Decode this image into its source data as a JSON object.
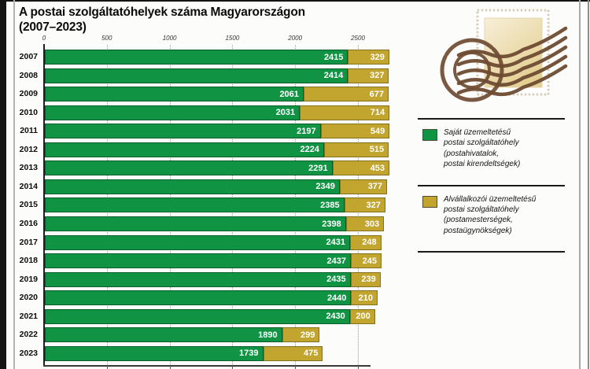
{
  "title": {
    "line1": "A postai szolgáltatóhelyek száma Magyarországon",
    "line2": "(2007–2023)"
  },
  "chart_data": {
    "type": "bar",
    "orientation": "horizontal",
    "stacked": true,
    "title": "A postai szolgáltatóhelyek száma Magyarországon (2007–2023)",
    "categories": [
      "2007",
      "2008",
      "2009",
      "2010",
      "2011",
      "2012",
      "2013",
      "2014",
      "2015",
      "2016",
      "2017",
      "2018",
      "2019",
      "2020",
      "2021",
      "2022",
      "2023"
    ],
    "series": [
      {
        "name": "Saját üzemeltetésű postai szolgáltatóhely (postahivatalok, postai kirendeltségek)",
        "color": "#109444",
        "values": [
          2415,
          2414,
          2061,
          2031,
          2197,
          2224,
          2291,
          2349,
          2385,
          2398,
          2431,
          2437,
          2435,
          2440,
          2430,
          1890,
          1739
        ]
      },
      {
        "name": "Alvállalkozói üzemeltetésű postai szolgáltatóhely (postamesterségek, postaügynökségek)",
        "color": "#c1a52f",
        "values": [
          329,
          327,
          677,
          714,
          549,
          515,
          453,
          377,
          327,
          303,
          248,
          245,
          239,
          210,
          200,
          299,
          475
        ]
      }
    ],
    "x_ticks": [
      0,
      500,
      1000,
      1500,
      2000,
      2500
    ],
    "xlim": [
      0,
      2800
    ],
    "grid": "vertical-dotted",
    "legend_position": "right",
    "value_labels": "inside-end-white-bold"
  },
  "legend": {
    "items": [
      {
        "color": "#109444",
        "lines": [
          "Saját üzemeltetésű",
          "postai szolgáltatóhely",
          "(postahivatalok,",
          "postai kirendeltségek)"
        ]
      },
      {
        "color": "#c1a52f",
        "lines": [
          "Alvállalkozói üzemeltetésű",
          "postai szolgáltatóhely",
          "(postamesterségek,",
          "postaügynökségek)"
        ]
      }
    ]
  },
  "stamp": {
    "icon": "postage-stamp-with-postmark"
  }
}
